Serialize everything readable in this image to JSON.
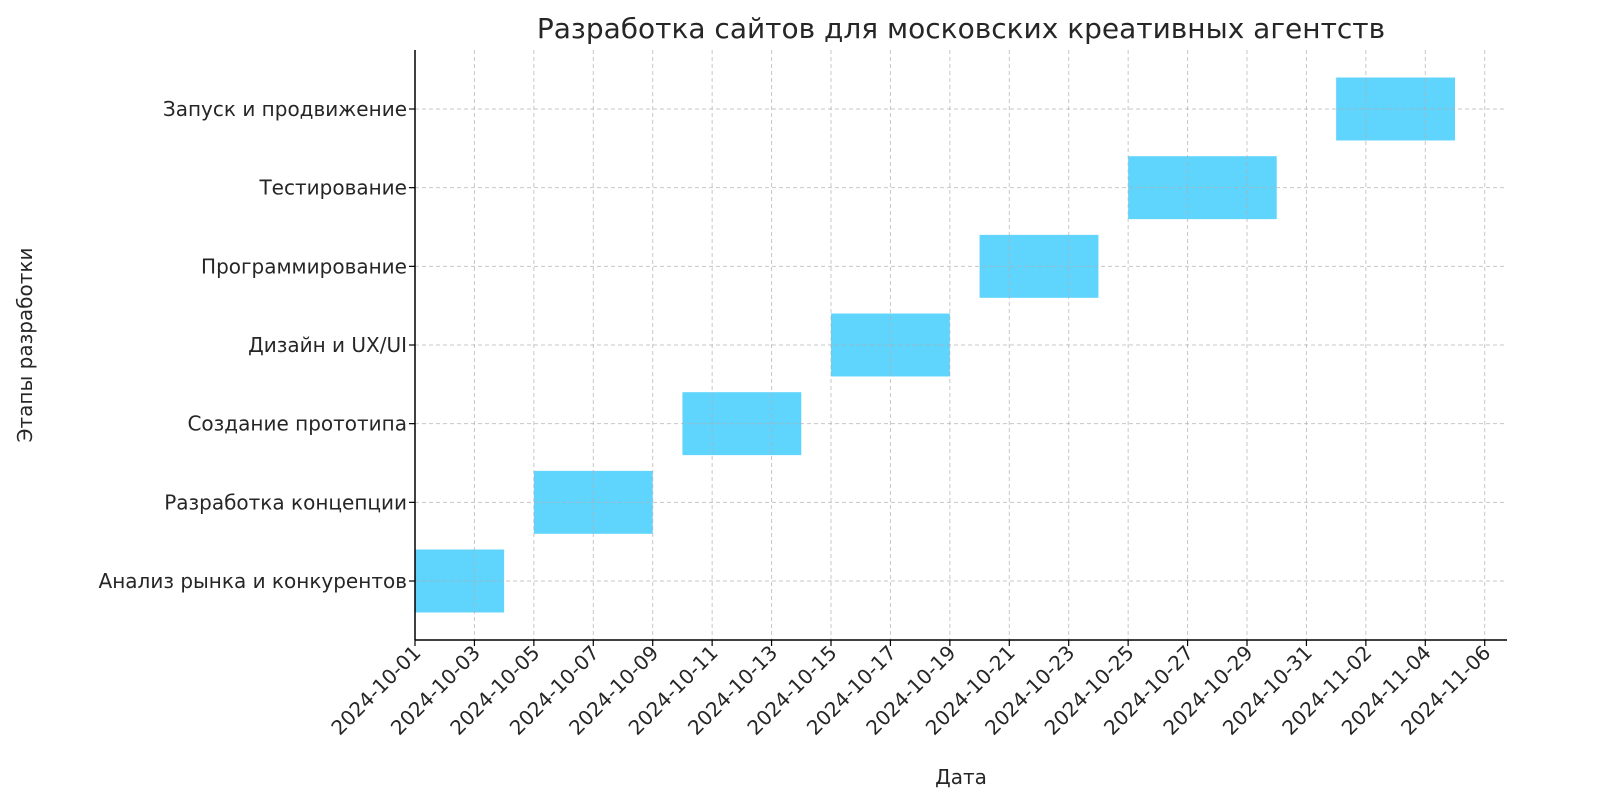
{
  "chart_data": {
    "type": "gantt",
    "title": "Разработка сайтов для московских креативных агентств",
    "xlabel": "Дата",
    "ylabel": "Этапы разработки",
    "bar_color": "#5fd4fd",
    "grid": true,
    "xlim": [
      "2024-10-01",
      "2024-11-06T18:00"
    ],
    "x_ticks": [
      "2024-10-01",
      "2024-10-03",
      "2024-10-05",
      "2024-10-07",
      "2024-10-09",
      "2024-10-11",
      "2024-10-13",
      "2024-10-15",
      "2024-10-17",
      "2024-10-19",
      "2024-10-21",
      "2024-10-23",
      "2024-10-25",
      "2024-10-27",
      "2024-10-29",
      "2024-10-31",
      "2024-11-02",
      "2024-11-04",
      "2024-11-06"
    ],
    "tasks": [
      {
        "name": "Анализ рынка и конкурентов",
        "start": "2024-10-01",
        "end": "2024-10-04"
      },
      {
        "name": "Разработка концепции",
        "start": "2024-10-05",
        "end": "2024-10-09"
      },
      {
        "name": "Создание прототипа",
        "start": "2024-10-10",
        "end": "2024-10-14"
      },
      {
        "name": "Дизайн и UX/UI",
        "start": "2024-10-15",
        "end": "2024-10-19"
      },
      {
        "name": "Программирование",
        "start": "2024-10-20",
        "end": "2024-10-24"
      },
      {
        "name": "Тестирование",
        "start": "2024-10-25",
        "end": "2024-10-30"
      },
      {
        "name": "Запуск и продвижение",
        "start": "2024-11-01",
        "end": "2024-11-05"
      }
    ]
  }
}
